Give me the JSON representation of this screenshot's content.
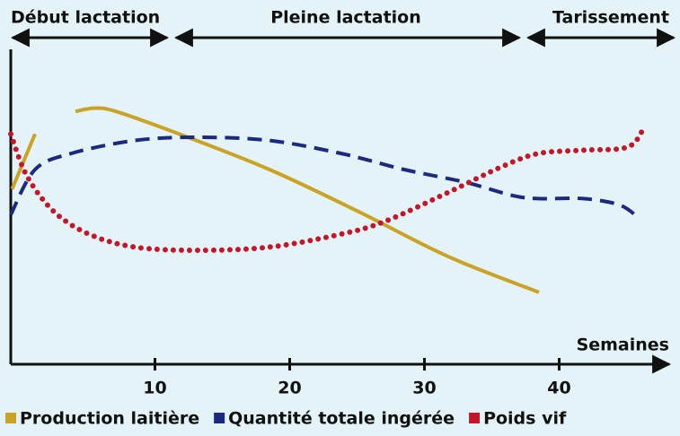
{
  "chart_data": {
    "type": "line",
    "phases": [
      "Début lactation",
      "Pleine lactation",
      "Tarissement"
    ],
    "xlabel": "Semaines",
    "xlim": [
      -0.7,
      48.5
    ],
    "xticks": [
      10,
      20,
      30,
      40
    ],
    "ylim": [
      0,
      100
    ],
    "series": [
      {
        "name": "Production laitière",
        "color": "#c9a227",
        "style": "solid",
        "x": [
          -0.6,
          1.1,
          2.5,
          4.1,
          5.5,
          7.1,
          11.8,
          18.5,
          25.1,
          31.8,
          38.5
        ],
        "values": [
          54,
          71,
          null,
          78,
          79,
          78,
          71,
          60,
          47,
          33,
          22
        ]
      },
      {
        "name": "Quantité totale ingérée",
        "color": "#1b2a7e",
        "style": "dashed",
        "x": [
          -0.7,
          1.1,
          3.8,
          8.5,
          13.1,
          18.5,
          23.8,
          28.5,
          33.1,
          36.5,
          38.5,
          41.8,
          44.5,
          45.9
        ],
        "values": [
          46,
          60,
          65,
          69,
          70,
          69,
          65,
          60,
          56,
          52,
          51,
          51,
          49,
          45
        ]
      },
      {
        "name": "Poids vif",
        "color": "#c0182a",
        "style": "dotted",
        "x": [
          -0.7,
          0.5,
          2.5,
          5.1,
          8.5,
          13.1,
          18.5,
          23.8,
          27.1,
          31.8,
          35.8,
          38.5,
          41.8,
          45.1,
          46.3
        ],
        "values": [
          71,
          58,
          47,
          40,
          36,
          35,
          36,
          40,
          44,
          53,
          61,
          65,
          66,
          67,
          73
        ]
      }
    ]
  }
}
